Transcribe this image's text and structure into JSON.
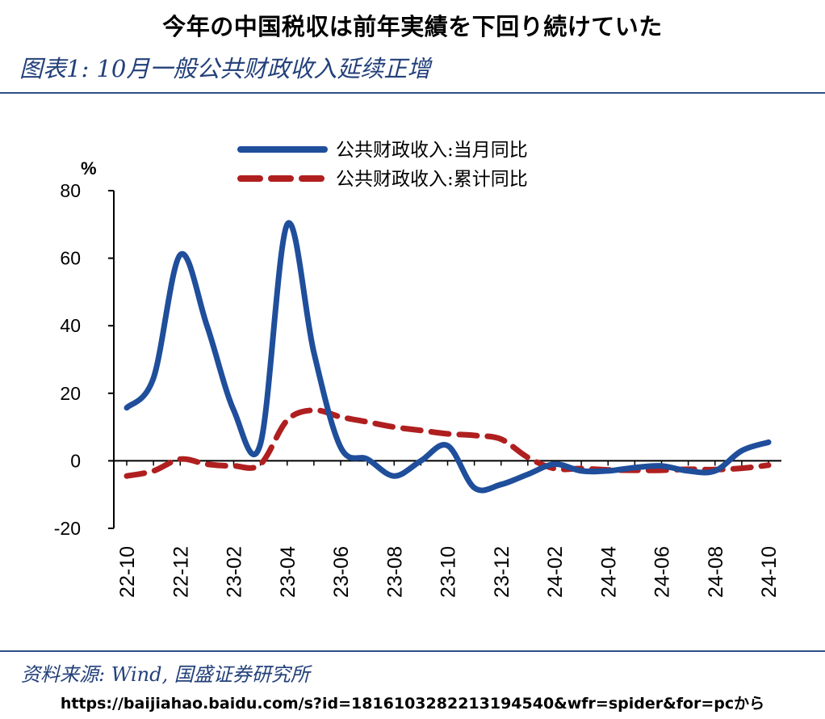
{
  "headline": "今年の中国税収は前年実績を下回り続けていた",
  "figure_title": "图表1: 10月一般公共财政收入延续正增",
  "source_note": "资料来源: Wind, 国盛证券研究所",
  "url_note": "https://baijiahao.baidu.com/s?id=1816103282213194540&wfr=spider&for=pcから",
  "colors": {
    "monthly": "#1f4e9b",
    "cumulative": "#b01f1f",
    "rule": "#2c4f8a"
  },
  "chart_data": {
    "type": "line",
    "ylabel": "%",
    "ylim": [
      -20,
      80
    ],
    "yticks": [
      -20,
      0,
      20,
      40,
      60,
      80
    ],
    "x": [
      "22-10",
      "22-11",
      "22-12",
      "23-01",
      "23-02",
      "23-03",
      "23-04",
      "23-05",
      "23-06",
      "23-07",
      "23-08",
      "23-09",
      "23-10",
      "23-11",
      "23-12",
      "24-01",
      "24-02",
      "24-03",
      "24-04",
      "24-05",
      "24-06",
      "24-07",
      "24-08",
      "24-09",
      "24-10"
    ],
    "xtick_labels": [
      "22-10",
      "22-12",
      "23-02",
      "23-04",
      "23-06",
      "23-08",
      "23-10",
      "23-12",
      "24-02",
      "24-04",
      "24-06",
      "24-08",
      "24-10"
    ],
    "legend_position": "top",
    "series": [
      {
        "name": "公共财政收入:当月同比",
        "style": "solid",
        "values": [
          15.7,
          24.5,
          61.0,
          40.0,
          15.0,
          5.0,
          70.0,
          32.0,
          4.0,
          0.5,
          -4.5,
          0.0,
          4.5,
          -8.0,
          -7.0,
          -4.0,
          -1.0,
          -3.0,
          -3.0,
          -2.0,
          -1.5,
          -3.0,
          -3.0,
          3.0,
          5.5
        ]
      },
      {
        "name": "公共财政收入:累计同比",
        "style": "dashed",
        "values": [
          -4.5,
          -3.0,
          0.5,
          -1.0,
          -1.5,
          -1.0,
          12.0,
          15.0,
          13.0,
          11.5,
          10.0,
          9.0,
          8.0,
          7.5,
          6.4,
          1.0,
          -2.3,
          -2.3,
          -2.7,
          -2.8,
          -2.8,
          -2.5,
          -2.6,
          -2.2,
          -1.3
        ]
      }
    ]
  }
}
